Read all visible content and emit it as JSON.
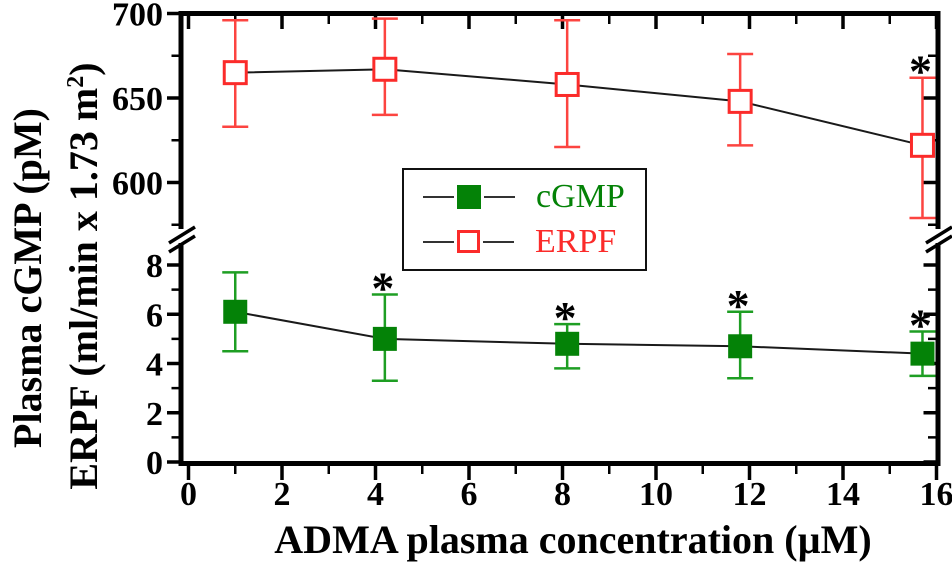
{
  "figure": {
    "x_label": "ADMA plasma concentration (µM)",
    "y_label_line1": "Plasma cGMP (pM)",
    "y_label_line2_pre": "ERPF (ml/min x 1.73 m",
    "y_label_line2_sup": "2",
    "y_label_line2_post": ")"
  },
  "legend": {
    "items": [
      {
        "label": "cGMP",
        "marker": "filled-square",
        "color": "#048207"
      },
      {
        "label": "ERPF",
        "marker": "open-square",
        "color": "#fb2b2a"
      }
    ]
  },
  "chart_data": {
    "type": "line",
    "title": "",
    "xlabel": "ADMA plasma concentration (µM)",
    "ylabel": "Plasma cGMP (pM) / ERPF (ml/min x 1.73 m2)",
    "x": [
      1.0,
      4.2,
      8.1,
      11.8,
      15.7
    ],
    "xlim": [
      0,
      16
    ],
    "x_ticks": [
      0,
      2,
      4,
      6,
      8,
      10,
      12,
      14,
      16
    ],
    "x_minor_ticks": [
      1,
      3,
      5,
      7,
      9,
      11,
      13,
      15
    ],
    "grid": false,
    "legend_position": "upper-center-inside",
    "y_axis": {
      "broken": true,
      "segments": [
        {
          "name": "top",
          "series": "ERPF",
          "range": [
            572,
            700
          ],
          "ticks": [
            700,
            650,
            600
          ],
          "minor_ticks": [
            675,
            625,
            575
          ]
        },
        {
          "name": "bottom",
          "series": "cGMP",
          "range": [
            0,
            8.8
          ],
          "ticks": [
            8,
            6,
            4,
            2,
            0
          ],
          "minor_ticks": [
            7,
            5,
            3,
            1
          ]
        }
      ]
    },
    "series": [
      {
        "name": "cGMP",
        "segment": "bottom",
        "marker": "filled-square",
        "color": "#048207",
        "error_color": "#1e9e23",
        "values": [
          6.1,
          5.0,
          4.8,
          4.7,
          4.4
        ],
        "err_low": [
          4.5,
          3.3,
          3.8,
          3.4,
          3.5
        ],
        "err_high": [
          7.7,
          6.8,
          5.6,
          6.1,
          5.3
        ],
        "significant": [
          false,
          true,
          true,
          true,
          true
        ]
      },
      {
        "name": "ERPF",
        "segment": "top",
        "marker": "open-square",
        "color": "#fb2b2a",
        "error_color": "#fc4440",
        "values": [
          665,
          667,
          658,
          648,
          622
        ],
        "err_low": [
          633,
          640,
          621,
          622,
          579
        ],
        "err_high": [
          696,
          697,
          696,
          676,
          662
        ],
        "significant": [
          false,
          false,
          false,
          false,
          true
        ]
      }
    ],
    "annotations": "Asterisks (*) mark statistically significant points"
  }
}
